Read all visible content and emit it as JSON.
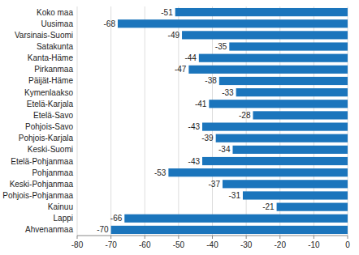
{
  "chart_data": {
    "type": "bar",
    "orientation": "horizontal",
    "categories": [
      "Ahvenanmaa",
      "Lappi",
      "Kainuu",
      "Pohjois-Pohjanmaa",
      "Keski-Pohjanmaa",
      "Pohjanmaa",
      "Etelä-Pohjanmaa",
      "Keski-Suomi",
      "Pohjois-Karjala",
      "Pohjois-Savo",
      "Etelä-Savo",
      "Etelä-Karjala",
      "Kymenlaakso",
      "Päijät-Häme",
      "Pirkanmaa",
      "Kanta-Häme",
      "Satakunta",
      "Varsinais-Suomi",
      "Uusimaa",
      "Koko maa"
    ],
    "values": [
      -70,
      -66,
      -21,
      -31,
      -37,
      -53,
      -43,
      -34,
      -39,
      -43,
      -28,
      -41,
      -33,
      -38,
      -47,
      -44,
      -35,
      -49,
      -68,
      -51
    ],
    "color": "#1b75bc",
    "xlim": [
      -80,
      0
    ],
    "xticks": [
      -80,
      -70,
      -60,
      -50,
      -40,
      -30,
      -20,
      -10,
      0
    ],
    "grid": true,
    "data_labels": true
  }
}
